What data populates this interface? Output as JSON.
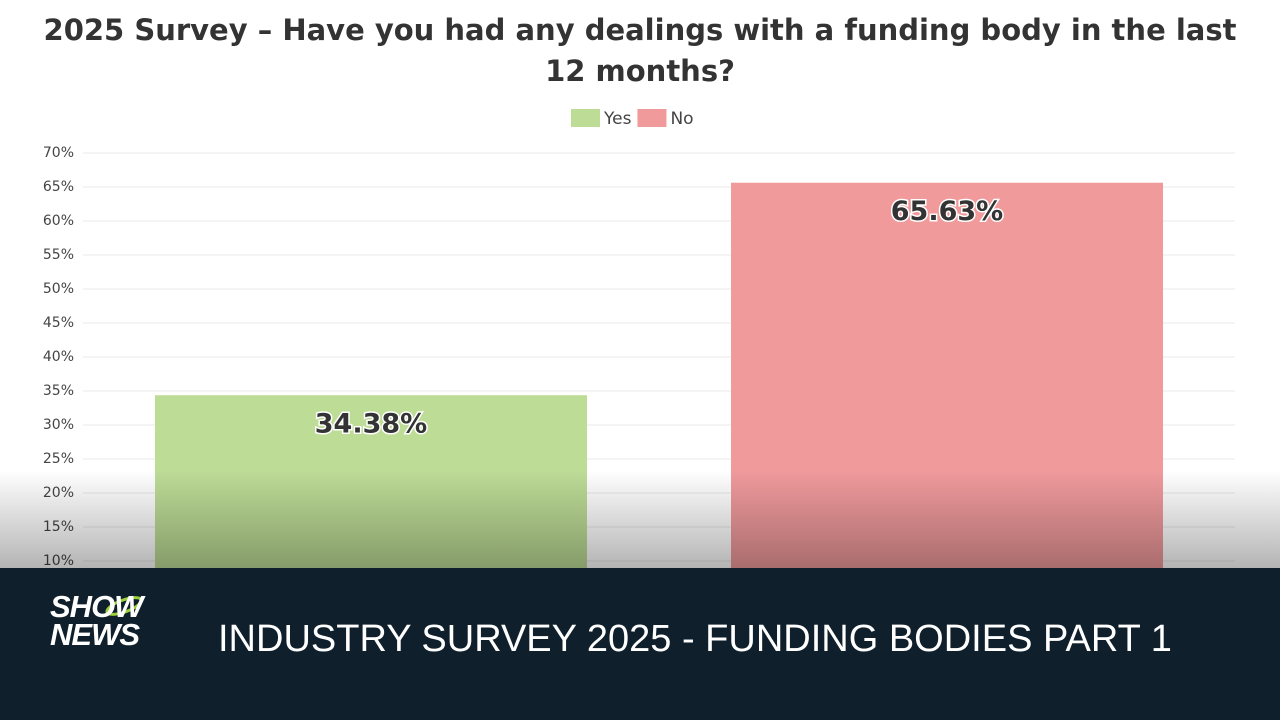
{
  "chart_data": {
    "type": "bar",
    "title": "2025 Survey – Have you had any dealings with a funding body in the last 12 months?",
    "categories": [
      null
    ],
    "series": [
      {
        "name": "Yes",
        "color": "#bddc96",
        "values": [
          34.38
        ],
        "value_labels": [
          "34.38%"
        ]
      },
      {
        "name": "No",
        "color": "#f09a9c",
        "values": [
          65.63
        ],
        "value_labels": [
          "65.63%"
        ]
      }
    ],
    "ylim": [
      0,
      70
    ],
    "yticks": [
      {
        "value": 10,
        "label": "10%"
      },
      {
        "value": 15,
        "label": "15%"
      },
      {
        "value": 20,
        "label": "20%"
      },
      {
        "value": 25,
        "label": "25%"
      },
      {
        "value": 30,
        "label": "30%"
      },
      {
        "value": 35,
        "label": "35%"
      },
      {
        "value": 40,
        "label": "40%"
      },
      {
        "value": 45,
        "label": "45%"
      },
      {
        "value": 50,
        "label": "50%"
      },
      {
        "value": 55,
        "label": "55%"
      },
      {
        "value": 60,
        "label": "60%"
      },
      {
        "value": 65,
        "label": "65%"
      },
      {
        "value": 70,
        "label": "70%"
      }
    ],
    "grid": true,
    "legend": "top"
  },
  "banner": {
    "logo": [
      "SHOW",
      "NEWS"
    ],
    "caption": "INDUSTRY SURVEY 2025 - FUNDING BODIES PART 1"
  }
}
